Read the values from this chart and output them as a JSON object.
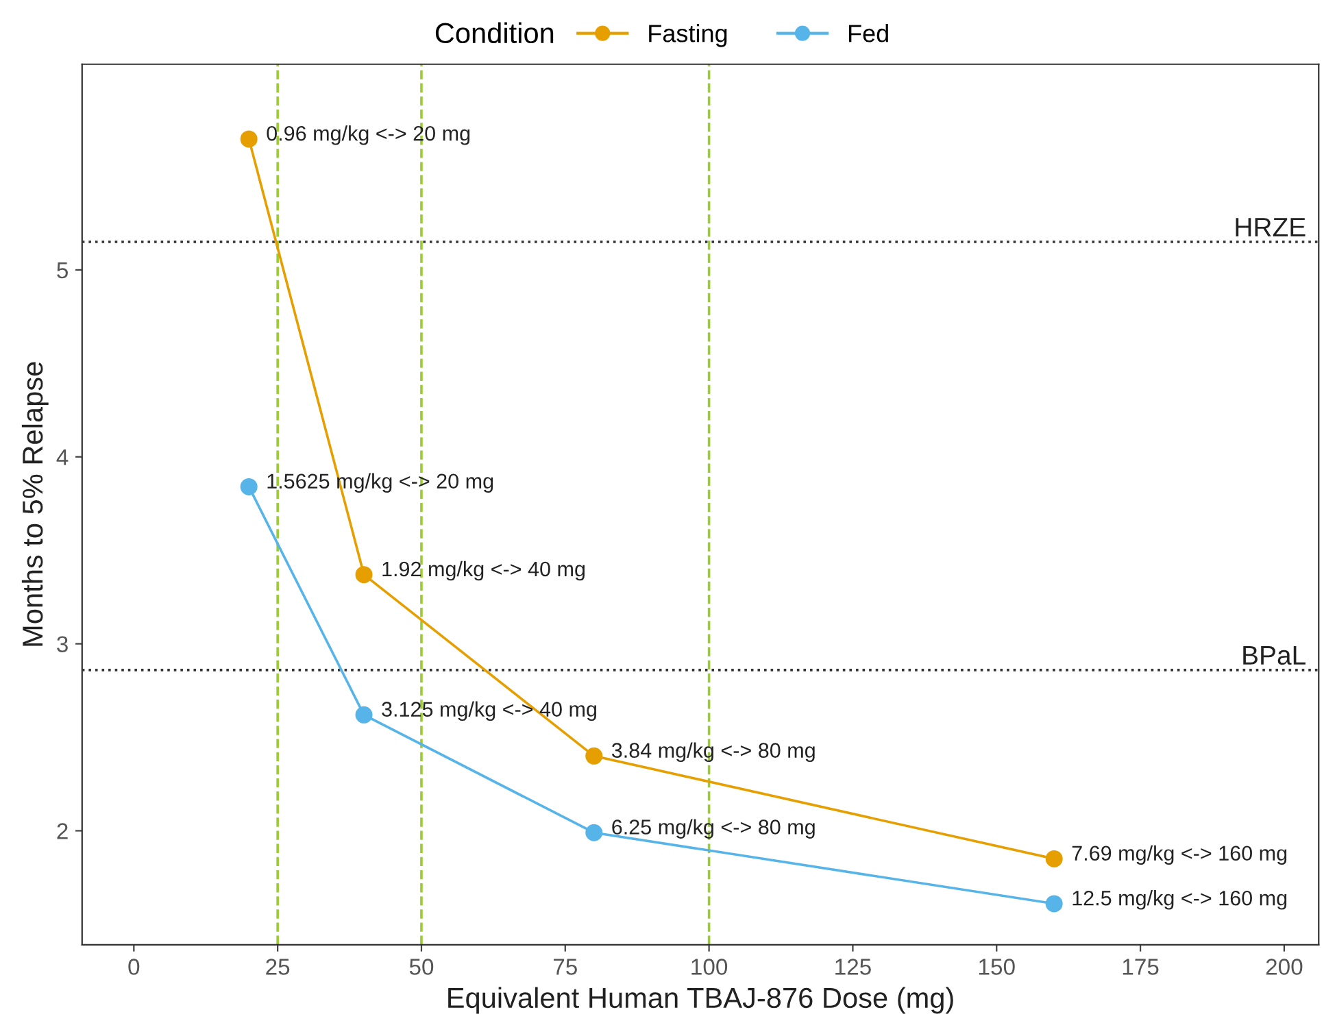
{
  "chart_data": {
    "type": "line",
    "xlabel": "Equivalent Human TBAJ-876 Dose (mg)",
    "ylabel": "Months to 5% Relapse",
    "legend_title": "Condition",
    "series": [
      {
        "name": "Fasting",
        "color": "#e69f00",
        "x": [
          20,
          40,
          80,
          160
        ],
        "values": [
          5.7,
          3.37,
          2.4,
          1.85
        ]
      },
      {
        "name": "Fed",
        "color": "#56b4e9",
        "x": [
          20,
          40,
          80,
          160
        ],
        "values": [
          3.84,
          2.62,
          1.99,
          1.61
        ]
      }
    ],
    "annotations": [
      {
        "text": "0.96 mg/kg <-> 20 mg",
        "x": 20,
        "y": 5.7
      },
      {
        "text": "1.92 mg/kg <-> 40 mg",
        "x": 40,
        "y": 3.37
      },
      {
        "text": "3.84 mg/kg <-> 80 mg",
        "x": 80,
        "y": 2.4
      },
      {
        "text": "7.69 mg/kg <-> 160 mg",
        "x": 160,
        "y": 1.85
      },
      {
        "text": "1.5625 mg/kg <-> 20 mg",
        "x": 20,
        "y": 3.84
      },
      {
        "text": "3.125 mg/kg <-> 40 mg",
        "x": 40,
        "y": 2.62
      },
      {
        "text": "6.25 mg/kg <-> 80 mg",
        "x": 80,
        "y": 1.99
      },
      {
        "text": "12.5 mg/kg <-> 160 mg",
        "x": 160,
        "y": 1.61
      }
    ],
    "ref_lines": [
      {
        "axis": "y",
        "value": 5.15,
        "label": "HRZE",
        "color": "#333333",
        "line_style": "dotted"
      },
      {
        "axis": "y",
        "value": 2.86,
        "label": "BPaL",
        "color": "#333333",
        "line_style": "dotted"
      },
      {
        "axis": "x",
        "value": 25,
        "color": "#9acd32",
        "line_style": "dashed"
      },
      {
        "axis": "x",
        "value": 50,
        "color": "#9acd32",
        "line_style": "dashed"
      },
      {
        "axis": "x",
        "value": 100,
        "color": "#9acd32",
        "line_style": "dashed"
      }
    ],
    "xlim": [
      -9,
      206
    ],
    "xticks": [
      0,
      25,
      50,
      75,
      100,
      125,
      150,
      175,
      200
    ],
    "ylim": [
      1.39,
      6.1
    ],
    "yticks": [
      2,
      3,
      4,
      5
    ],
    "grid": false,
    "legend": "top",
    "marker": "circle",
    "line_style": "solid"
  }
}
